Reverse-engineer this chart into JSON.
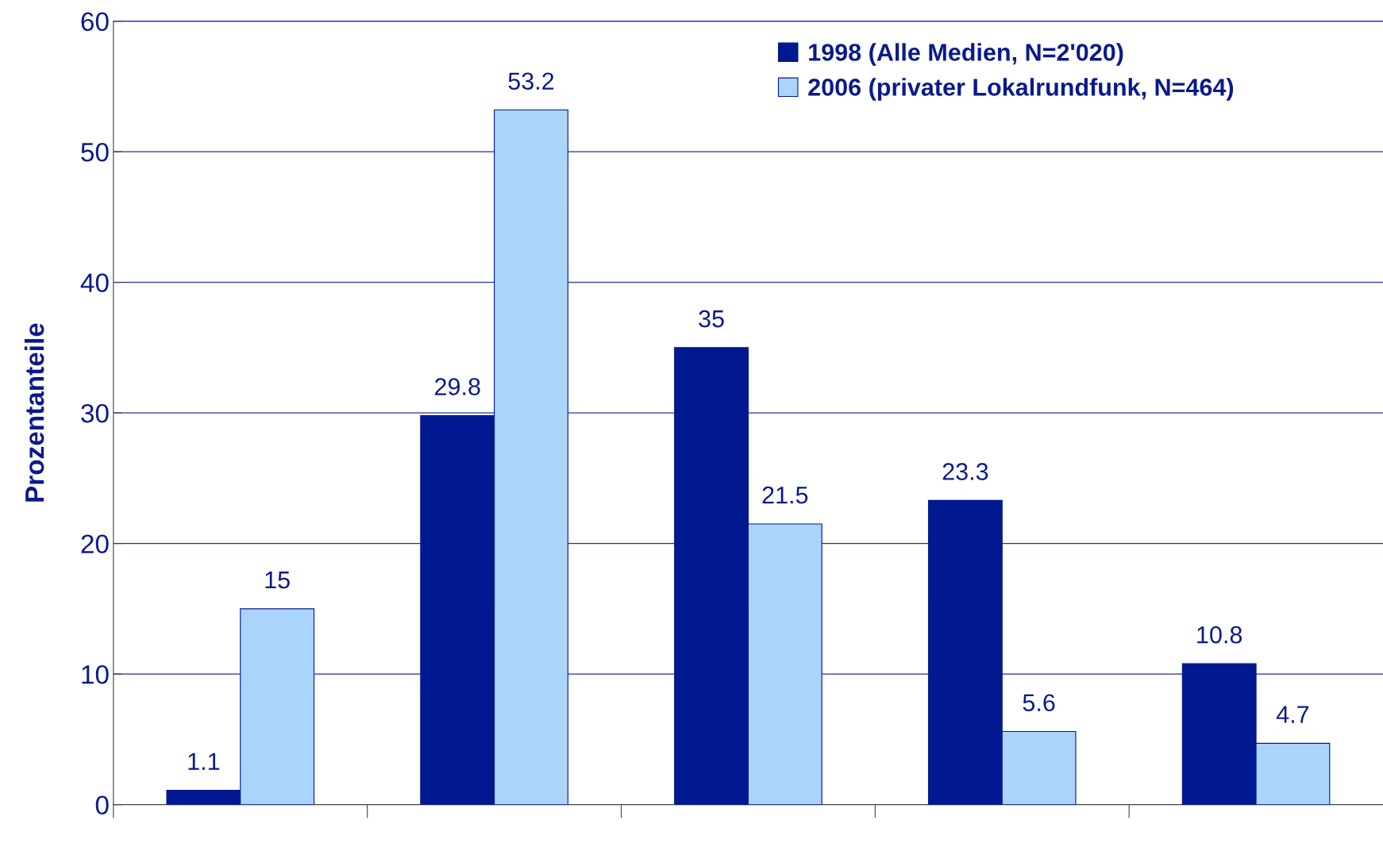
{
  "chart_data": {
    "type": "bar",
    "ylabel": "Prozentanteile",
    "categories": [
      null,
      null,
      null,
      null,
      null
    ],
    "series": [
      {
        "name": "1998 (Alle Medien, N=2'020)",
        "color": "#001890",
        "values": [
          1.1,
          29.8,
          35,
          23.3,
          10.8
        ]
      },
      {
        "name": "2006 (privater Lokalrundfunk, N=464)",
        "color": "#aad4fa",
        "values": [
          15,
          53.2,
          21.5,
          5.6,
          4.7
        ]
      }
    ],
    "ylim": [
      0,
      60
    ],
    "yticks": [
      0,
      10,
      20,
      30,
      40,
      50,
      60
    ],
    "grid": "y",
    "legend": "top right",
    "data_labels": true
  }
}
